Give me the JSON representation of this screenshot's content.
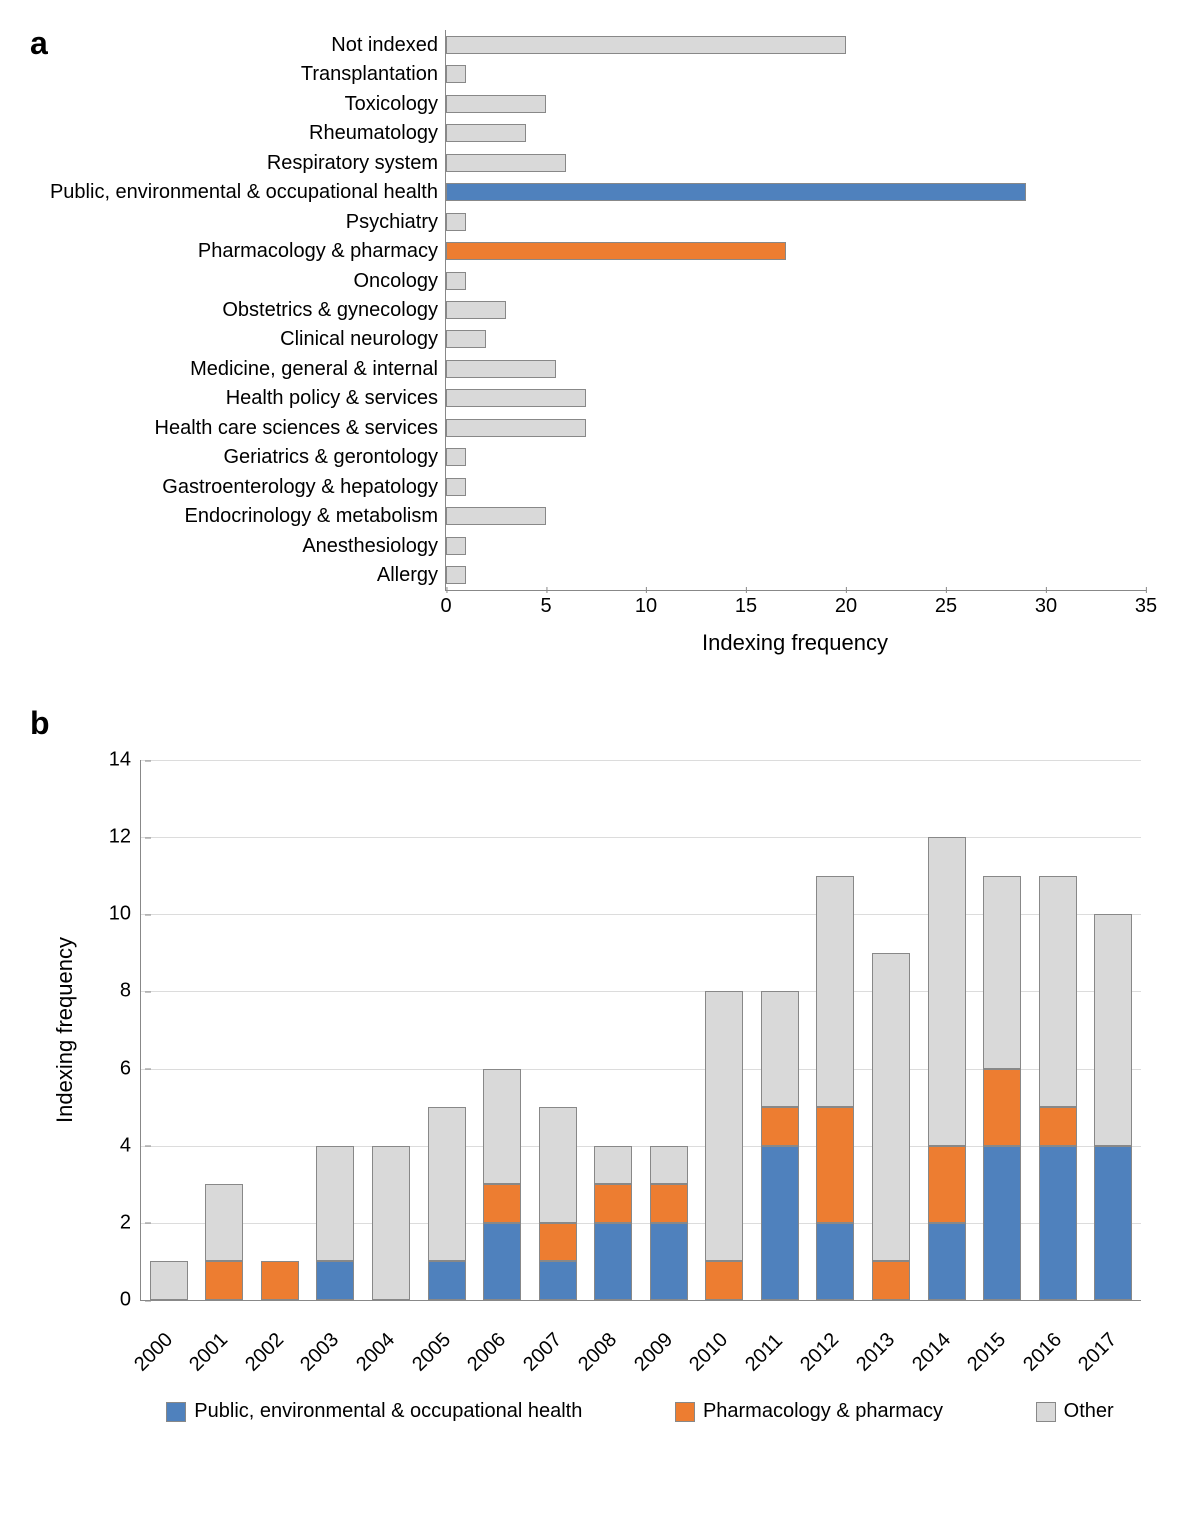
{
  "colors": {
    "blue": "#4f81bd",
    "orange": "#ed7d31",
    "grey": "#d9d9d9",
    "border": "#888888",
    "grid": "#dcdcdc"
  },
  "chartA": {
    "panel_label": "a",
    "type": "horizontal_bar",
    "xlabel": "Indexing frequency",
    "xlim": [
      0,
      35
    ],
    "xticks": [
      0,
      5,
      10,
      15,
      20,
      25,
      30,
      35
    ],
    "bar_fill_default": "#d9d9d9",
    "categories": [
      {
        "label": "Not indexed",
        "value": 20,
        "color": "#d9d9d9"
      },
      {
        "label": "Transplantation",
        "value": 1,
        "color": "#d9d9d9"
      },
      {
        "label": "Toxicology",
        "value": 5,
        "color": "#d9d9d9"
      },
      {
        "label": "Rheumatology",
        "value": 4,
        "color": "#d9d9d9"
      },
      {
        "label": "Respiratory system",
        "value": 6,
        "color": "#d9d9d9"
      },
      {
        "label": "Public, environmental & occupational health",
        "value": 29,
        "color": "#4f81bd"
      },
      {
        "label": "Psychiatry",
        "value": 1,
        "color": "#d9d9d9"
      },
      {
        "label": "Pharmacology & pharmacy",
        "value": 17,
        "color": "#ed7d31"
      },
      {
        "label": "Oncology",
        "value": 1,
        "color": "#d9d9d9"
      },
      {
        "label": "Obstetrics & gynecology",
        "value": 3,
        "color": "#d9d9d9"
      },
      {
        "label": "Clinical neurology",
        "value": 2,
        "color": "#d9d9d9"
      },
      {
        "label": "Medicine, general & internal",
        "value": 5.5,
        "color": "#d9d9d9"
      },
      {
        "label": "Health policy & services",
        "value": 7,
        "color": "#d9d9d9"
      },
      {
        "label": "Health care sciences & services",
        "value": 7,
        "color": "#d9d9d9"
      },
      {
        "label": "Geriatrics & gerontology",
        "value": 1,
        "color": "#d9d9d9"
      },
      {
        "label": "Gastroenterology & hepatology",
        "value": 1,
        "color": "#d9d9d9"
      },
      {
        "label": "Endocrinology & metabolism",
        "value": 5,
        "color": "#d9d9d9"
      },
      {
        "label": "Anesthesiology",
        "value": 1,
        "color": "#d9d9d9"
      },
      {
        "label": "Allergy",
        "value": 1,
        "color": "#d9d9d9"
      }
    ]
  },
  "chartB": {
    "panel_label": "b",
    "type": "stacked_bar",
    "ylabel": "Indexing frequency",
    "ylim": [
      0,
      14
    ],
    "yticks": [
      0,
      2,
      4,
      6,
      8,
      10,
      12,
      14
    ],
    "series_colors": {
      "blue": "#4f81bd",
      "orange": "#ed7d31",
      "grey": "#d9d9d9"
    },
    "years": [
      {
        "year": "2000",
        "blue": 0,
        "orange": 0,
        "grey": 1
      },
      {
        "year": "2001",
        "blue": 0,
        "orange": 1,
        "grey": 2
      },
      {
        "year": "2002",
        "blue": 0,
        "orange": 1,
        "grey": 0
      },
      {
        "year": "2003",
        "blue": 1,
        "orange": 0,
        "grey": 3
      },
      {
        "year": "2004",
        "blue": 0,
        "orange": 0,
        "grey": 4
      },
      {
        "year": "2005",
        "blue": 1,
        "orange": 0,
        "grey": 4
      },
      {
        "year": "2006",
        "blue": 2,
        "orange": 1,
        "grey": 3
      },
      {
        "year": "2007",
        "blue": 1,
        "orange": 1,
        "grey": 3
      },
      {
        "year": "2008",
        "blue": 2,
        "orange": 1,
        "grey": 1
      },
      {
        "year": "2009",
        "blue": 2,
        "orange": 1,
        "grey": 1
      },
      {
        "year": "2010",
        "blue": 0,
        "orange": 1,
        "grey": 7
      },
      {
        "year": "2011",
        "blue": 4,
        "orange": 1,
        "grey": 3
      },
      {
        "year": "2012",
        "blue": 2,
        "orange": 3,
        "grey": 6
      },
      {
        "year": "2013",
        "blue": 0,
        "orange": 1,
        "grey": 8
      },
      {
        "year": "2014",
        "blue": 2,
        "orange": 2,
        "grey": 8
      },
      {
        "year": "2015",
        "blue": 4,
        "orange": 2,
        "grey": 5
      },
      {
        "year": "2016",
        "blue": 4,
        "orange": 1,
        "grey": 6
      },
      {
        "year": "2017",
        "blue": 4,
        "orange": 0,
        "grey": 6
      }
    ],
    "legend": [
      {
        "label": "Public, environmental & occupational health",
        "color": "#4f81bd"
      },
      {
        "label": "Pharmacology & pharmacy",
        "color": "#ed7d31"
      },
      {
        "label": "Other",
        "color": "#d9d9d9"
      }
    ]
  }
}
